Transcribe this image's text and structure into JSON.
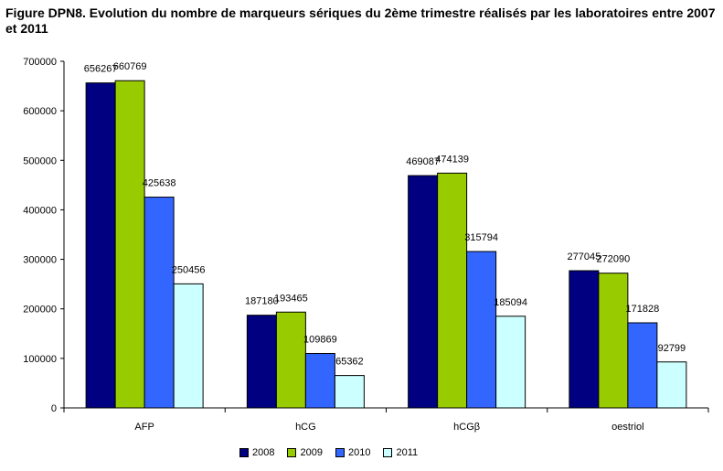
{
  "chart_data": {
    "type": "bar",
    "title": "Figure DPN8. Evolution du nombre de marqueurs sériques du 2ème trimestre réalisés par les laboratoires entre 2007 et 2011",
    "categories": [
      "AFP",
      "hCG",
      "hCGβ",
      "oestriol"
    ],
    "series": [
      {
        "name": "2008",
        "color": "#000080",
        "values": [
          656267,
          187180,
          469087,
          277045
        ]
      },
      {
        "name": "2009",
        "color": "#99CC00",
        "values": [
          660769,
          193465,
          474139,
          272090
        ]
      },
      {
        "name": "2010",
        "color": "#3366FF",
        "values": [
          425638,
          109869,
          315794,
          171828
        ]
      },
      {
        "name": "2011",
        "color": "#CCFFFF",
        "values": [
          250456,
          65362,
          185094,
          92799
        ]
      }
    ],
    "ylim": [
      0,
      700000
    ],
    "yticks": [
      0,
      100000,
      200000,
      300000,
      400000,
      500000,
      600000,
      700000
    ],
    "grid": false,
    "legend_position": "bottom"
  }
}
